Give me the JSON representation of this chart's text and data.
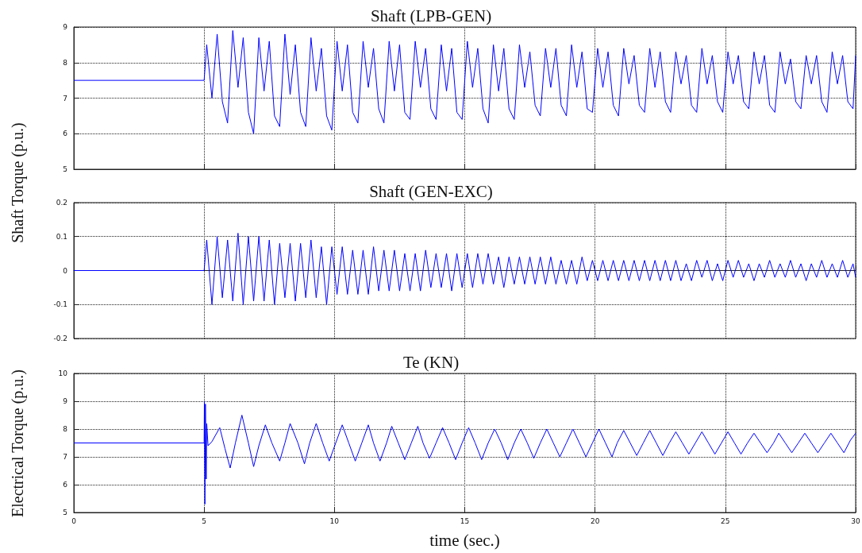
{
  "chart_data": [
    {
      "type": "line",
      "title": "Shaft (LPB-GEN)",
      "ylabel": "Shaft Torque (p.u.)",
      "xlim": [
        0,
        30
      ],
      "xticks": [
        0,
        5,
        10,
        15,
        20,
        25,
        30
      ],
      "ylim": [
        5,
        9
      ],
      "yticks": [
        5,
        6,
        7,
        8,
        9
      ],
      "grid": true,
      "marker": "none",
      "tick_labels": "y",
      "series": [
        {
          "color": "#0000ff",
          "x": [
            0,
            5,
            5.1,
            5.3,
            5.5,
            5.7,
            5.9,
            6.1,
            6.3,
            6.5,
            6.7,
            6.9,
            7.1,
            7.3,
            7.5,
            7.7,
            7.9,
            8.1,
            8.3,
            8.5,
            8.7,
            8.9,
            9.1,
            9.3,
            9.5,
            9.7,
            9.9,
            10.1,
            10.3,
            10.5,
            10.7,
            10.9,
            11.1,
            11.3,
            11.5,
            11.7,
            11.9,
            12.1,
            12.3,
            12.5,
            12.7,
            12.9,
            13.1,
            13.3,
            13.5,
            13.7,
            13.9,
            14.1,
            14.3,
            14.5,
            14.7,
            14.9,
            15.1,
            15.3,
            15.5,
            15.7,
            15.9,
            16.1,
            16.3,
            16.5,
            16.7,
            16.9,
            17.1,
            17.3,
            17.5,
            17.7,
            17.9,
            18.1,
            18.3,
            18.5,
            18.7,
            18.9,
            19.1,
            19.3,
            19.5,
            19.7,
            19.9,
            20.1,
            20.3,
            20.5,
            20.7,
            20.9,
            21.1,
            21.3,
            21.5,
            21.7,
            21.9,
            22.1,
            22.3,
            22.5,
            22.7,
            22.9,
            23.1,
            23.3,
            23.5,
            23.7,
            23.9,
            24.1,
            24.3,
            24.5,
            24.7,
            24.9,
            25.1,
            25.3,
            25.5,
            25.7,
            25.9,
            26.1,
            26.3,
            26.5,
            26.7,
            26.9,
            27.1,
            27.3,
            27.5,
            27.7,
            27.9,
            28.1,
            28.3,
            28.5,
            28.7,
            28.9,
            29.1,
            29.3,
            29.5,
            29.7,
            29.9,
            30
          ],
          "values": [
            7.5,
            7.5,
            8.5,
            7.0,
            8.8,
            6.9,
            6.3,
            8.9,
            7.3,
            8.7,
            6.6,
            6.0,
            8.7,
            7.2,
            8.6,
            6.5,
            6.2,
            8.8,
            7.1,
            8.5,
            6.6,
            6.2,
            8.7,
            7.2,
            8.4,
            6.5,
            6.1,
            8.6,
            7.2,
            8.5,
            6.6,
            6.3,
            8.6,
            7.3,
            8.4,
            6.7,
            6.3,
            8.6,
            7.2,
            8.5,
            6.6,
            6.4,
            8.6,
            7.3,
            8.4,
            6.7,
            6.4,
            8.5,
            7.2,
            8.4,
            6.6,
            6.4,
            8.6,
            7.3,
            8.4,
            6.7,
            6.3,
            8.5,
            7.2,
            8.4,
            6.7,
            6.4,
            8.5,
            7.3,
            8.3,
            6.8,
            6.5,
            8.4,
            7.3,
            8.4,
            6.8,
            6.5,
            8.5,
            7.3,
            8.3,
            6.7,
            6.6,
            8.4,
            7.3,
            8.3,
            6.8,
            6.5,
            8.4,
            7.4,
            8.2,
            6.8,
            6.6,
            8.4,
            7.3,
            8.3,
            6.9,
            6.6,
            8.3,
            7.4,
            8.2,
            6.8,
            6.6,
            8.4,
            7.4,
            8.2,
            6.9,
            6.6,
            8.3,
            7.4,
            8.2,
            6.9,
            6.7,
            8.3,
            7.4,
            8.2,
            6.8,
            6.6,
            8.3,
            7.4,
            8.1,
            6.9,
            6.7,
            8.2,
            7.4,
            8.2,
            6.9,
            6.6,
            8.3,
            7.4,
            8.2,
            6.9,
            6.7,
            8.2
          ]
        }
      ]
    },
    {
      "type": "line",
      "title": "Shaft (GEN-EXC)",
      "xlim": [
        0,
        30
      ],
      "xticks": [
        0,
        5,
        10,
        15,
        20,
        25,
        30
      ],
      "ylim": [
        -0.2,
        0.2
      ],
      "yticks": [
        -0.2,
        -0.1,
        0,
        0.1,
        0.2
      ],
      "grid": true,
      "marker": "none",
      "tick_labels": "y",
      "series": [
        {
          "color": "#0000ff",
          "x": [
            0,
            5,
            5.1,
            5.3,
            5.5,
            5.7,
            5.9,
            6.1,
            6.3,
            6.5,
            6.7,
            6.9,
            7.1,
            7.3,
            7.5,
            7.7,
            7.9,
            8.1,
            8.3,
            8.5,
            8.7,
            8.9,
            9.1,
            9.3,
            9.5,
            9.7,
            9.9,
            10.1,
            10.3,
            10.5,
            10.7,
            10.9,
            11.1,
            11.3,
            11.5,
            11.7,
            11.9,
            12.1,
            12.3,
            12.5,
            12.7,
            12.9,
            13.1,
            13.3,
            13.5,
            13.7,
            13.9,
            14.1,
            14.3,
            14.5,
            14.7,
            14.9,
            15.1,
            15.3,
            15.5,
            15.7,
            15.9,
            16.1,
            16.3,
            16.5,
            16.7,
            16.9,
            17.1,
            17.3,
            17.5,
            17.7,
            17.9,
            18.1,
            18.3,
            18.5,
            18.7,
            18.9,
            19.1,
            19.3,
            19.5,
            19.7,
            19.9,
            20.1,
            20.3,
            20.5,
            20.7,
            20.9,
            21.1,
            21.3,
            21.5,
            21.7,
            21.9,
            22.1,
            22.3,
            22.5,
            22.7,
            22.9,
            23.1,
            23.3,
            23.5,
            23.7,
            23.9,
            24.1,
            24.3,
            24.5,
            24.7,
            24.9,
            25.1,
            25.3,
            25.5,
            25.7,
            25.9,
            26.1,
            26.3,
            26.5,
            26.7,
            26.9,
            27.1,
            27.3,
            27.5,
            27.7,
            27.9,
            28.1,
            28.3,
            28.5,
            28.7,
            28.9,
            29.1,
            29.3,
            29.5,
            29.7,
            29.9,
            30
          ],
          "values": [
            0,
            0,
            0.09,
            -0.1,
            0.1,
            -0.08,
            0.09,
            -0.09,
            0.11,
            -0.1,
            0.1,
            -0.09,
            0.1,
            -0.09,
            0.09,
            -0.1,
            0.08,
            -0.08,
            0.08,
            -0.09,
            0.08,
            -0.08,
            0.09,
            -0.08,
            0.07,
            -0.1,
            0.07,
            -0.07,
            0.07,
            -0.07,
            0.06,
            -0.07,
            0.06,
            -0.07,
            0.07,
            -0.06,
            0.06,
            -0.06,
            0.06,
            -0.06,
            0.05,
            -0.06,
            0.05,
            -0.06,
            0.06,
            -0.05,
            0.05,
            -0.05,
            0.05,
            -0.06,
            0.05,
            -0.05,
            0.05,
            -0.05,
            0.05,
            -0.04,
            0.05,
            -0.04,
            0.04,
            -0.05,
            0.04,
            -0.04,
            0.04,
            -0.04,
            0.04,
            -0.04,
            0.04,
            -0.04,
            0.04,
            -0.04,
            0.03,
            -0.04,
            0.03,
            -0.04,
            0.04,
            -0.03,
            0.03,
            -0.03,
            0.03,
            -0.03,
            0.03,
            -0.03,
            0.03,
            -0.03,
            0.03,
            -0.03,
            0.03,
            -0.03,
            0.03,
            -0.03,
            0.03,
            -0.03,
            0.03,
            -0.03,
            0.02,
            -0.03,
            0.03,
            -0.02,
            0.03,
            -0.03,
            0.02,
            -0.03,
            0.03,
            -0.02,
            0.03,
            -0.02,
            0.02,
            -0.03,
            0.02,
            -0.02,
            0.03,
            -0.02,
            0.02,
            -0.02,
            0.03,
            -0.02,
            0.02,
            -0.03,
            0.02,
            -0.02,
            0.03,
            -0.02,
            0.02,
            -0.02,
            0.03,
            -0.02,
            0.02,
            -0.02
          ]
        }
      ]
    },
    {
      "type": "line",
      "title": "Te (KN)",
      "ylabel": "Electrical Torque (p.u.)",
      "xlabel": "time (sec.)",
      "xlim": [
        0,
        30
      ],
      "xticks": [
        0,
        5,
        10,
        15,
        20,
        25,
        30
      ],
      "ylim": [
        5,
        10
      ],
      "yticks": [
        5,
        6,
        7,
        8,
        9,
        10
      ],
      "grid": true,
      "marker": "none",
      "series": [
        {
          "color": "#0000ff",
          "x": [
            0,
            5,
            5.01,
            5.03,
            5.05,
            5.08,
            5.1,
            5.15,
            5.3,
            5.6,
            5.8,
            6.0,
            6.2,
            6.45,
            6.7,
            6.9,
            7.1,
            7.35,
            7.6,
            7.9,
            8.1,
            8.3,
            8.6,
            8.85,
            9.05,
            9.3,
            9.55,
            9.8,
            10.05,
            10.3,
            10.55,
            10.8,
            11.05,
            11.3,
            11.5,
            11.75,
            12.0,
            12.2,
            12.45,
            12.7,
            12.95,
            13.2,
            13.4,
            13.65,
            13.9,
            14.15,
            14.4,
            14.65,
            14.9,
            15.15,
            15.4,
            15.65,
            15.9,
            16.15,
            16.4,
            16.65,
            16.9,
            17.15,
            17.4,
            17.65,
            17.9,
            18.15,
            18.4,
            18.65,
            18.9,
            19.15,
            19.4,
            19.65,
            19.9,
            20.15,
            20.4,
            20.65,
            20.85,
            21.1,
            21.35,
            21.6,
            21.85,
            22.1,
            22.35,
            22.6,
            22.85,
            23.1,
            23.35,
            23.6,
            23.85,
            24.1,
            24.35,
            24.6,
            24.85,
            25.1,
            25.35,
            25.6,
            25.85,
            26.1,
            26.35,
            26.6,
            26.85,
            27.05,
            27.3,
            27.55,
            27.8,
            28.05,
            28.3,
            28.55,
            28.8,
            29.05,
            29.3,
            29.55,
            29.8,
            30
          ],
          "values": [
            7.5,
            7.5,
            9.0,
            5.3,
            8.9,
            6.2,
            8.2,
            7.4,
            7.55,
            8.05,
            7.3,
            6.6,
            7.5,
            8.5,
            7.5,
            6.65,
            7.4,
            8.15,
            7.5,
            6.85,
            7.5,
            8.2,
            7.5,
            6.75,
            7.5,
            8.2,
            7.5,
            6.85,
            7.5,
            8.15,
            7.5,
            6.85,
            7.5,
            8.15,
            7.5,
            6.85,
            7.5,
            8.1,
            7.5,
            6.9,
            7.5,
            8.1,
            7.5,
            6.95,
            7.5,
            8.05,
            7.5,
            6.9,
            7.5,
            8.05,
            7.5,
            6.9,
            7.5,
            8.0,
            7.5,
            6.9,
            7.5,
            8.0,
            7.5,
            6.95,
            7.5,
            8.0,
            7.5,
            7.0,
            7.5,
            8.0,
            7.5,
            7.0,
            7.5,
            8.0,
            7.5,
            7.0,
            7.5,
            7.95,
            7.5,
            7.05,
            7.5,
            7.95,
            7.5,
            7.05,
            7.5,
            7.9,
            7.5,
            7.1,
            7.5,
            7.9,
            7.5,
            7.1,
            7.5,
            7.9,
            7.5,
            7.1,
            7.5,
            7.85,
            7.5,
            7.15,
            7.5,
            7.85,
            7.5,
            7.15,
            7.5,
            7.85,
            7.5,
            7.15,
            7.5,
            7.85,
            7.5,
            7.15,
            7.6,
            7.85
          ]
        }
      ]
    }
  ]
}
